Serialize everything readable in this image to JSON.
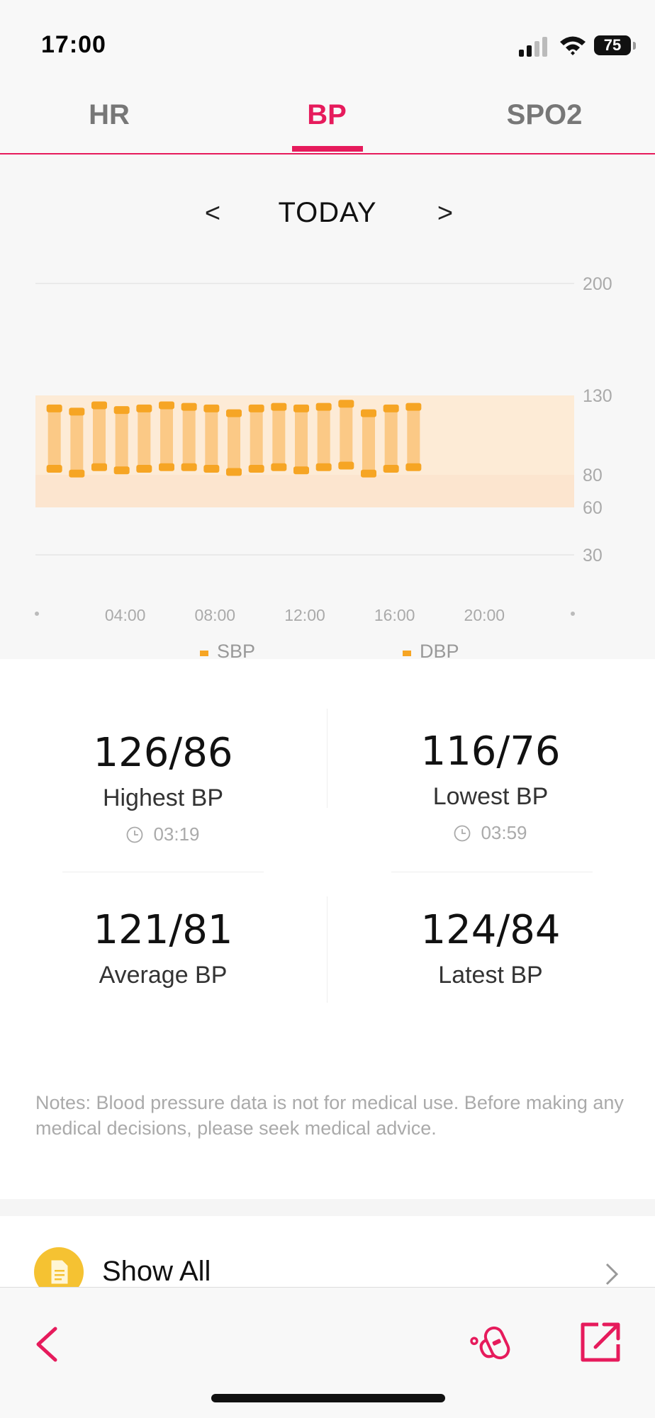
{
  "status_bar": {
    "time": "17:00",
    "battery_level": "75",
    "icons": [
      "signal-icon",
      "wifi-icon",
      "battery-icon"
    ]
  },
  "tabs": [
    {
      "label": "HR",
      "active": false
    },
    {
      "label": "BP",
      "active": true
    },
    {
      "label": "SPO2",
      "active": false
    }
  ],
  "date_nav": {
    "prev": "<",
    "label": "TODAY",
    "next": ">"
  },
  "colors": {
    "accent": "#e61b5c",
    "sbp": "#f6a524",
    "dbp": "#f6a524",
    "normal_band_upper": "#fdebd6",
    "normal_band_lower": "#fce5cf"
  },
  "chart_data": {
    "type": "range-bar",
    "y_ticks": [
      "200",
      "130",
      "80",
      "60",
      "30"
    ],
    "y_tick_values": [
      200,
      130,
      80,
      60,
      30
    ],
    "x_ticks": [
      "04:00",
      "08:00",
      "12:00",
      "16:00",
      "20:00"
    ],
    "x_tick_hours": [
      4,
      8,
      12,
      16,
      20
    ],
    "x_range_hours": [
      0,
      24
    ],
    "y_range": [
      30,
      200
    ],
    "normal_ranges": [
      [
        80,
        130
      ],
      [
        60,
        80
      ]
    ],
    "legend": [
      "SBP",
      "DBP"
    ],
    "legend_position": "bottom",
    "series": [
      {
        "name": "SBP",
        "values": [
          122,
          120,
          124,
          121,
          122,
          124,
          123,
          122,
          119,
          122,
          123,
          122,
          123,
          125,
          119,
          122,
          123
        ]
      },
      {
        "name": "DBP",
        "values": [
          84,
          81,
          85,
          83,
          84,
          85,
          85,
          84,
          82,
          84,
          85,
          83,
          85,
          86,
          81,
          84,
          85
        ]
      }
    ],
    "points_hours": [
      0.4,
      1.4,
      2.4,
      3.4,
      4.4,
      5.4,
      6.4,
      7.4,
      8.4,
      9.4,
      10.4,
      11.4,
      12.4,
      13.4,
      14.4,
      15.4,
      16.4
    ]
  },
  "stats": {
    "highest": {
      "value": "126/86",
      "label": "Highest BP",
      "time": "03:19"
    },
    "lowest": {
      "value": "116/76",
      "label": "Lowest BP",
      "time": "03:59"
    },
    "average": {
      "value": "121/81",
      "label": "Average BP"
    },
    "latest": {
      "value": "124/84",
      "label": "Latest BP"
    }
  },
  "notes": "Notes: Blood pressure data is not for medical use. Before making any medical decisions, please seek medical advice.",
  "show_all": {
    "label": "Show All",
    "icon": "document-icon"
  },
  "bottom_bar": {
    "icons": [
      "back-icon",
      "device-icon",
      "share-icon"
    ]
  }
}
